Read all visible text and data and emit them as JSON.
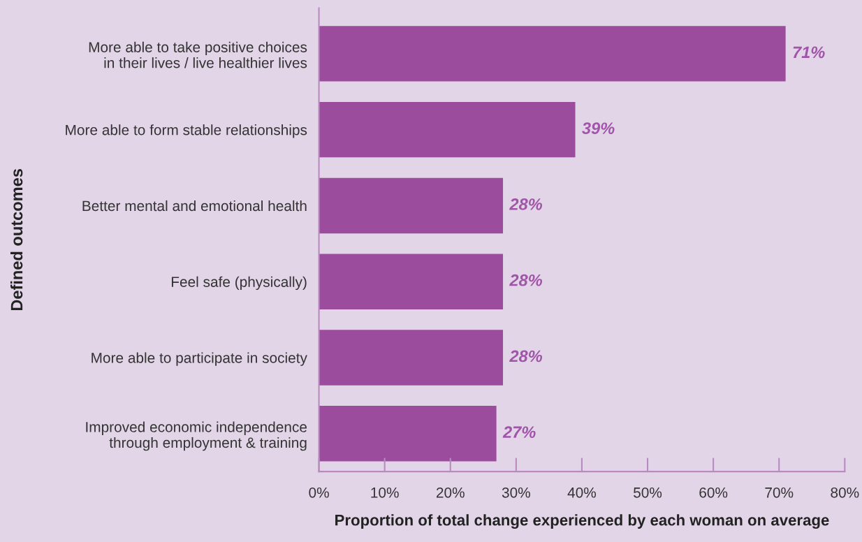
{
  "chart_data": {
    "type": "bar",
    "orientation": "horizontal",
    "xlabel": "Proportion of total change experienced by each woman on average",
    "ylabel": "Defined outcomes",
    "categories": [
      "More able to take positive choices\nin their lives / live healthier lives",
      "More able to form stable relationships",
      "Better mental and emotional health",
      "Feel safe (physically)",
      "More able to participate in society",
      "Improved economic independence\nthrough employment & training"
    ],
    "values": [
      71,
      39,
      28,
      28,
      28,
      27
    ],
    "value_labels": [
      "71%",
      "39%",
      "28%",
      "28%",
      "28%",
      "27%"
    ],
    "color": "#9b4c9c",
    "xlim": [
      0,
      80
    ],
    "xticks": [
      {
        "value": 0,
        "label": "0%"
      },
      {
        "value": 10,
        "label": "10%"
      },
      {
        "value": 20,
        "label": "20%"
      },
      {
        "value": 30,
        "label": "30%"
      },
      {
        "value": 40,
        "label": "40%"
      },
      {
        "value": 50,
        "label": "50%"
      },
      {
        "value": 60,
        "label": "60%"
      },
      {
        "value": 70,
        "label": "70%"
      },
      {
        "value": 80,
        "label": "80%"
      }
    ],
    "grid": false,
    "legend": false
  }
}
